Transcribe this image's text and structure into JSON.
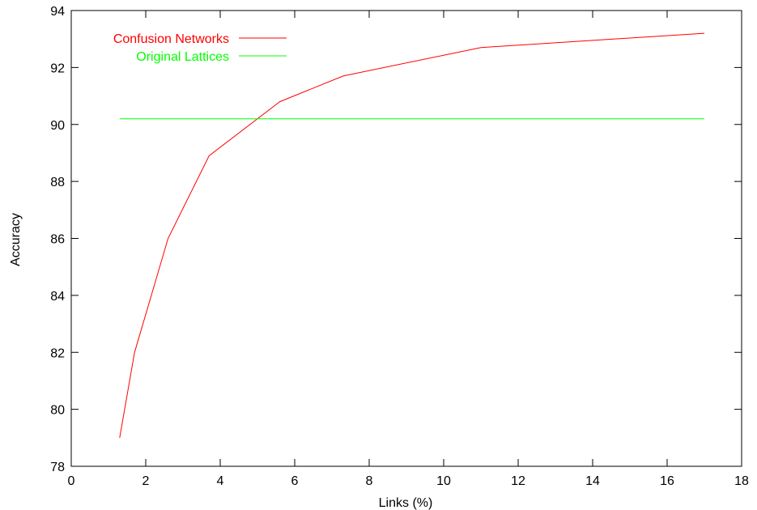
{
  "chart_data": {
    "type": "line",
    "xlabel": "Links (%)",
    "ylabel": "Accuracy",
    "xlim": [
      0,
      18
    ],
    "ylim": [
      78,
      94
    ],
    "xticks": [
      0,
      2,
      4,
      6,
      8,
      10,
      12,
      14,
      16,
      18
    ],
    "yticks": [
      78,
      80,
      82,
      84,
      86,
      88,
      90,
      92,
      94
    ],
    "grid": false,
    "legend_position": "top-left",
    "series": [
      {
        "name": "Confusion Networks",
        "color": "#ff0000",
        "x": [
          1.3,
          1.7,
          2.6,
          3.7,
          5.6,
          7.3,
          11.0,
          17.0
        ],
        "y": [
          79.0,
          82.0,
          86.0,
          88.9,
          90.8,
          91.7,
          92.7,
          93.2
        ]
      },
      {
        "name": "Original Lattices",
        "color": "#00ff00",
        "x": [
          1.3,
          17.0
        ],
        "y": [
          90.2,
          90.2
        ]
      }
    ]
  }
}
